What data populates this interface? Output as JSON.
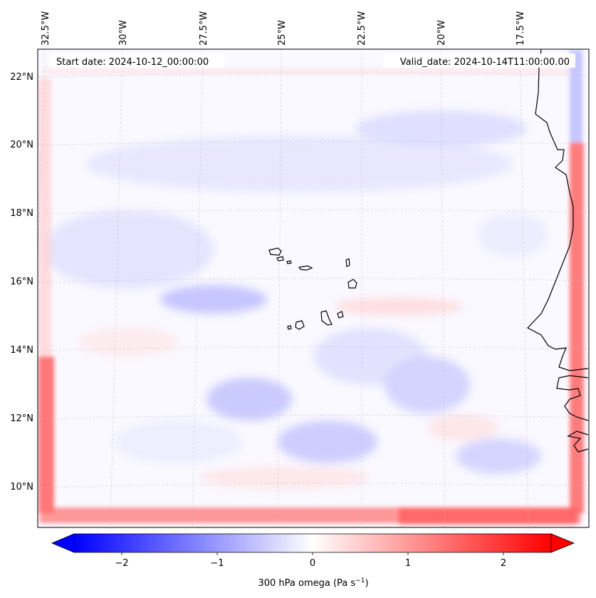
{
  "map": {
    "start_label": "Start date: 2024-10-12_00:00:00",
    "valid_label": "Valid_date: 2024-10-14T11:00:00.00",
    "lon_labels": [
      "32.5°W",
      "30°W",
      "27.5°W",
      "25°W",
      "22.5°W",
      "20°W",
      "17.5°W"
    ],
    "lat_labels": [
      "22°N",
      "20°N",
      "18°N",
      "16°N",
      "14°N",
      "12°N",
      "10°N"
    ],
    "gridlines": true,
    "projection": "conic",
    "colors": {
      "negative": "#0000ff",
      "neutral": "#ffffff",
      "positive": "#ff0000",
      "coastline": "#000000"
    }
  },
  "colorbar": {
    "label_main": "300 hPa omega (Pa s",
    "label_sup": "−1",
    "label_end": ")",
    "ticks": [
      "−2",
      "−1",
      "0",
      "1",
      "2"
    ],
    "tick_values": [
      -2,
      -1,
      0,
      1,
      2
    ],
    "range": [
      -2.5,
      2.5
    ],
    "extend": "both",
    "cmap": "bwr"
  }
}
